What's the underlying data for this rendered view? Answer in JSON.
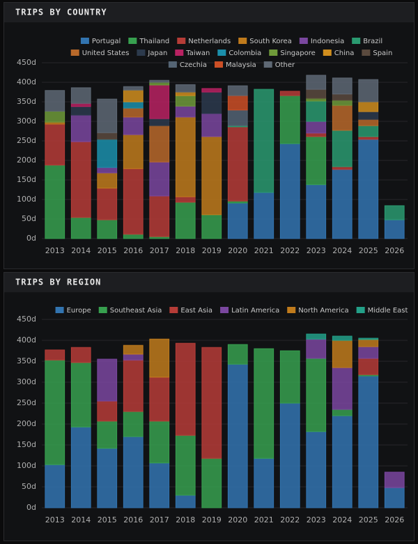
{
  "chart_data": [
    {
      "type": "stacked-bar",
      "title": "TRIPS BY COUNTRY",
      "categories": [
        "2013",
        "2014",
        "2015",
        "2016",
        "2017",
        "2018",
        "2019",
        "2020",
        "2021",
        "2022",
        "2023",
        "2024",
        "2025",
        "2026"
      ],
      "ylim": [
        0,
        450
      ],
      "yticks": [
        {
          "value": 0,
          "label": "0d"
        },
        {
          "value": 50,
          "label": "50d"
        },
        {
          "value": 100,
          "label": "100d"
        },
        {
          "value": 150,
          "label": "150d"
        },
        {
          "value": 200,
          "label": "200d"
        },
        {
          "value": 250,
          "label": "250d"
        },
        {
          "value": 300,
          "label": "300d"
        },
        {
          "value": 350,
          "label": "350d"
        },
        {
          "value": 400,
          "label": "400d"
        },
        {
          "value": 450,
          "label": "450d"
        }
      ],
      "grid": true,
      "legend": "top",
      "series": [
        {
          "name": "Portugal",
          "color": "#3274b0",
          "values": [
            0,
            0,
            0,
            0,
            0,
            0,
            0,
            91,
            118,
            243,
            138,
            177,
            254,
            48
          ]
        },
        {
          "name": "Thailand",
          "color": "#37a04f",
          "values": [
            188,
            54,
            48,
            11,
            5,
            93,
            61,
            5,
            0,
            123,
            123,
            0,
            0,
            0
          ]
        },
        {
          "name": "Netherlands",
          "color": "#b63c37",
          "values": [
            105,
            194,
            81,
            168,
            104,
            14,
            0,
            190,
            0,
            11,
            9,
            7,
            7,
            0
          ]
        },
        {
          "name": "South Korea",
          "color": "#c07b1c",
          "values": [
            5,
            0,
            39,
            87,
            0,
            204,
            200,
            0,
            0,
            0,
            0,
            0,
            0,
            0
          ]
        },
        {
          "name": "Indonesia",
          "color": "#7a479f",
          "values": [
            0,
            68,
            14,
            45,
            87,
            28,
            59,
            0,
            0,
            0,
            30,
            0,
            0,
            0
          ]
        },
        {
          "name": "Brazil",
          "color": "#2a9a70",
          "values": [
            0,
            0,
            0,
            0,
            0,
            0,
            0,
            3,
            264,
            0,
            52,
            93,
            28,
            36
          ]
        },
        {
          "name": "United States",
          "color": "#b8692a",
          "values": [
            0,
            0,
            0,
            23,
            93,
            0,
            0,
            0,
            0,
            0,
            0,
            64,
            16,
            0
          ]
        },
        {
          "name": "Japan",
          "color": "#2c3a4c",
          "values": [
            0,
            22,
            0,
            0,
            18,
            0,
            55,
            0,
            0,
            0,
            0,
            0,
            20,
            0
          ]
        },
        {
          "name": "Taiwan",
          "color": "#b82262",
          "values": [
            0,
            8,
            0,
            0,
            86,
            0,
            9,
            0,
            0,
            0,
            0,
            0,
            0,
            0
          ]
        },
        {
          "name": "Colombia",
          "color": "#1b8fab",
          "values": [
            0,
            0,
            72,
            16,
            0,
            0,
            0,
            0,
            0,
            0,
            0,
            0,
            0,
            0
          ]
        },
        {
          "name": "Singapore",
          "color": "#6f9a3a",
          "values": [
            28,
            0,
            0,
            0,
            7,
            27,
            0,
            0,
            0,
            0,
            7,
            13,
            0,
            0
          ]
        },
        {
          "name": "China",
          "color": "#d08e1e",
          "values": [
            0,
            0,
            0,
            30,
            0,
            9,
            0,
            0,
            0,
            0,
            0,
            0,
            25,
            0
          ]
        },
        {
          "name": "Spain",
          "color": "#5a4a3e",
          "values": [
            0,
            0,
            17,
            0,
            0,
            0,
            0,
            0,
            0,
            0,
            23,
            16,
            0,
            0
          ]
        },
        {
          "name": "Czechia",
          "color": "#546474",
          "values": [
            0,
            0,
            0,
            0,
            0,
            0,
            0,
            40,
            0,
            0,
            0,
            0,
            0,
            0
          ]
        },
        {
          "name": "Malaysia",
          "color": "#cc4f26",
          "values": [
            0,
            0,
            0,
            0,
            0,
            0,
            0,
            37,
            0,
            0,
            0,
            0,
            0,
            0
          ]
        },
        {
          "name": "Other",
          "color": "#5e6874",
          "values": [
            53,
            40,
            86,
            9,
            5,
            19,
            0,
            25,
            0,
            0,
            36,
            41,
            57,
            0
          ]
        }
      ]
    },
    {
      "type": "stacked-bar",
      "title": "TRIPS BY REGION",
      "categories": [
        "2013",
        "2014",
        "2015",
        "2016",
        "2017",
        "2018",
        "2019",
        "2020",
        "2021",
        "2022",
        "2023",
        "2024",
        "2025",
        "2026"
      ],
      "ylim": [
        0,
        450
      ],
      "yticks": [
        {
          "value": 0,
          "label": "0d"
        },
        {
          "value": 50,
          "label": "50d"
        },
        {
          "value": 100,
          "label": "100d"
        },
        {
          "value": 150,
          "label": "150d"
        },
        {
          "value": 200,
          "label": "200d"
        },
        {
          "value": 250,
          "label": "250d"
        },
        {
          "value": 300,
          "label": "300d"
        },
        {
          "value": 350,
          "label": "350d"
        },
        {
          "value": 400,
          "label": "400d"
        },
        {
          "value": 450,
          "label": "450d"
        }
      ],
      "grid": true,
      "legend": "top",
      "series": [
        {
          "name": "Europe",
          "color": "#3274b0",
          "values": [
            103,
            193,
            142,
            170,
            107,
            30,
            0,
            343,
            118,
            250,
            182,
            220,
            315,
            48
          ]
        },
        {
          "name": "Southeast Asia",
          "color": "#37a04f",
          "values": [
            250,
            154,
            65,
            60,
            100,
            143,
            118,
            47,
            262,
            125,
            175,
            15,
            3,
            0
          ]
        },
        {
          "name": "East Asia",
          "color": "#b63c37",
          "values": [
            24,
            36,
            48,
            123,
            105,
            220,
            265,
            0,
            0,
            0,
            0,
            0,
            39,
            0
          ]
        },
        {
          "name": "Latin America",
          "color": "#7a479f",
          "values": [
            0,
            0,
            100,
            14,
            0,
            0,
            0,
            0,
            0,
            0,
            46,
            100,
            28,
            37
          ]
        },
        {
          "name": "North America",
          "color": "#c07b1c",
          "values": [
            0,
            0,
            0,
            21,
            91,
            0,
            0,
            0,
            0,
            0,
            0,
            65,
            17,
            0
          ]
        },
        {
          "name": "Middle East",
          "color": "#23a088",
          "values": [
            0,
            0,
            0,
            0,
            0,
            0,
            0,
            0,
            0,
            0,
            12,
            10,
            3,
            0
          ]
        }
      ]
    }
  ]
}
